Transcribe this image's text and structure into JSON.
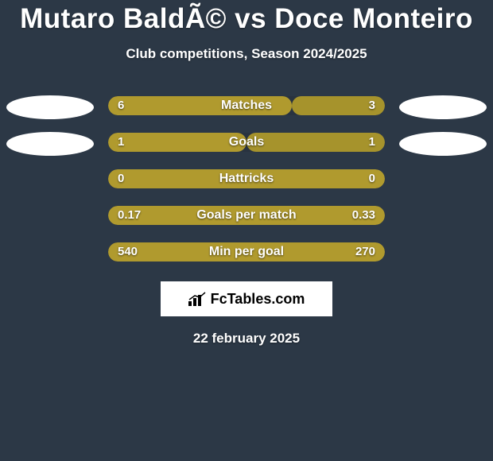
{
  "title": "Mutaro BaldÃ© vs Doce Monteiro",
  "subtitle": "Club competitions, Season 2024/2025",
  "date": "22 february 2025",
  "brand": "FcTables.com",
  "colors": {
    "background": "#2c3846",
    "bar_bg": "#293340",
    "left_fill": "#b09a2e",
    "right_fill": "#a6932c",
    "text": "#ffffff",
    "ellipse": "#ffffff"
  },
  "fontsize": {
    "title": 35,
    "subtitle": 17,
    "bar_label": 16,
    "value": 15,
    "date": 17
  },
  "rows": [
    {
      "label": "Matches",
      "left_text": "6",
      "right_text": "3",
      "left_pct": 66.5,
      "right_pct": 33.5,
      "show_ellipses": true
    },
    {
      "label": "Goals",
      "left_text": "1",
      "right_text": "1",
      "left_pct": 50,
      "right_pct": 50,
      "show_ellipses": true
    },
    {
      "label": "Hattricks",
      "left_text": "0",
      "right_text": "0",
      "left_pct": 100,
      "right_pct": 0,
      "show_ellipses": false
    },
    {
      "label": "Goals per match",
      "left_text": "0.17",
      "right_text": "0.33",
      "left_pct": 100,
      "right_pct": 0,
      "show_ellipses": false
    },
    {
      "label": "Min per goal",
      "left_text": "540",
      "right_text": "270",
      "left_pct": 100,
      "right_pct": 0,
      "show_ellipses": false
    }
  ]
}
